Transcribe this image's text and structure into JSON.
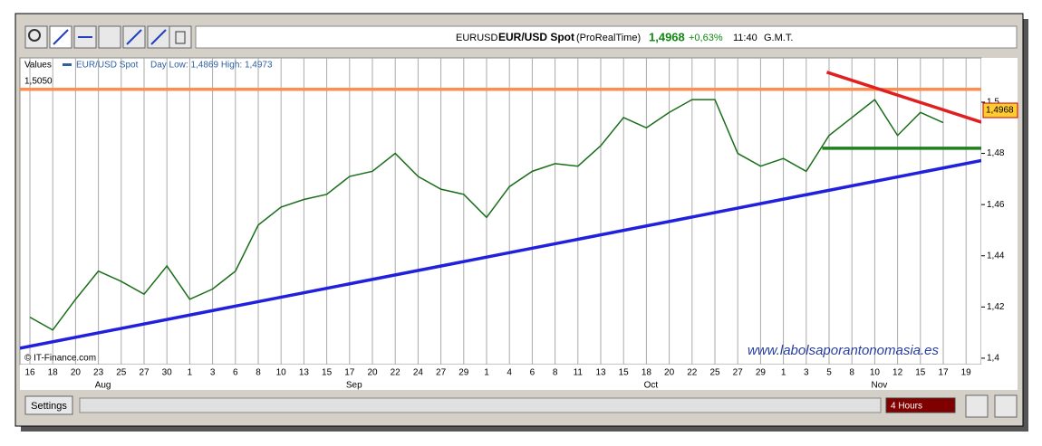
{
  "toolbar": {
    "symbol": "EURUSD",
    "name": "EUR/USD Spot",
    "source": "(ProRealTime)",
    "price": "1,4968",
    "change": "+0,63%",
    "time": "11:40",
    "zone": "G.M.T."
  },
  "legend": {
    "title": "Values",
    "series": "EUR/USD Spot",
    "range": "Day Low: 1,4869 High: 1,4973"
  },
  "credit": "© IT-Finance.com",
  "watermark": "www.labolsaporantonomasia.es",
  "footer": {
    "settings": "Settings",
    "interval": "4 Hours"
  },
  "chart_data": {
    "type": "line",
    "color": "#1a6e1a",
    "categories": [
      "16",
      "18",
      "20",
      "23",
      "25",
      "27",
      "30",
      "1",
      "3",
      "6",
      "8",
      "10",
      "13",
      "15",
      "17",
      "20",
      "22",
      "24",
      "27",
      "29",
      "1",
      "4",
      "6",
      "8",
      "11",
      "13",
      "15",
      "18",
      "20",
      "22",
      "25",
      "27",
      "29",
      "1",
      "3",
      "5",
      "8",
      "10",
      "12",
      "15",
      "17",
      "19"
    ],
    "months": [
      null,
      null,
      null,
      "Aug",
      null,
      null,
      null,
      null,
      null,
      null,
      null,
      null,
      null,
      null,
      "Sep",
      null,
      null,
      null,
      null,
      null,
      null,
      null,
      null,
      null,
      null,
      null,
      null,
      "Oct",
      null,
      null,
      null,
      null,
      null,
      null,
      null,
      null,
      null,
      "Nov",
      null,
      null,
      null,
      null
    ],
    "values": [
      1.416,
      1.411,
      1.423,
      1.434,
      1.43,
      1.425,
      1.436,
      1.423,
      1.427,
      1.434,
      1.452,
      1.459,
      1.462,
      1.464,
      1.471,
      1.473,
      1.48,
      1.471,
      1.466,
      1.464,
      1.455,
      1.467,
      1.473,
      1.476,
      1.475,
      1.483,
      1.494,
      1.49,
      1.496,
      1.501,
      1.501,
      1.48,
      1.475,
      1.478,
      1.473,
      1.487,
      1.494,
      1.501,
      1.487,
      1.496,
      1.492,
      null
    ],
    "ylim": [
      1.3975,
      1.5173
    ],
    "yticks": [
      {
        "value": 1.4,
        "label": "1,4"
      },
      {
        "value": 1.42,
        "label": "1,42"
      },
      {
        "value": 1.44,
        "label": "1,44"
      },
      {
        "value": 1.46,
        "label": "1,46"
      },
      {
        "value": 1.48,
        "label": "1,48"
      },
      {
        "value": 1.5,
        "label": "1,5"
      }
    ],
    "last_price": {
      "value": 1.4968,
      "label": "1,4968"
    },
    "trendlines": [
      {
        "color": "#ff8c50",
        "start": -0.44,
        "end": 41.67,
        "values": [
          1.505,
          1.505
        ],
        "label": "1,5050"
      },
      {
        "color": "#2020dd",
        "start": -0.44,
        "end": 41.67,
        "values": [
          1.4039,
          1.4772
        ]
      },
      {
        "color": "#e02020",
        "start": 34.9,
        "end": 41.67,
        "values": [
          1.5117,
          1.4922
        ]
      },
      {
        "color": "#208020",
        "start": 34.7,
        "end": 41.67,
        "values": [
          1.482,
          1.482
        ]
      }
    ]
  }
}
